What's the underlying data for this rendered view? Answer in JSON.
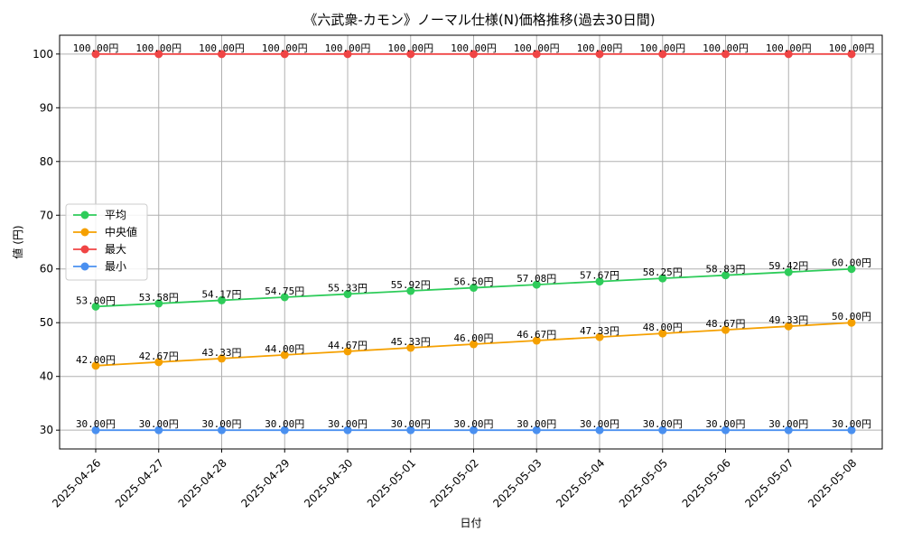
{
  "chart_data": {
    "type": "line",
    "title": "《六武衆-カモン》ノーマル仕様(N)価格推移(過去30日間)",
    "xlabel": "日付",
    "ylabel": "値 (円)",
    "x": [
      "2025-04-26",
      "2025-04-27",
      "2025-04-28",
      "2025-04-29",
      "2025-04-30",
      "2025-05-01",
      "2025-05-02",
      "2025-05-03",
      "2025-05-04",
      "2025-05-05",
      "2025-05-06",
      "2025-05-07",
      "2025-05-08"
    ],
    "ylim": [
      26.5,
      103.5
    ],
    "yticks": [
      30,
      40,
      50,
      60,
      70,
      80,
      90,
      100
    ],
    "grid": true,
    "legend_position": "center-left",
    "series": [
      {
        "name": "平均",
        "color": "#2ecc5a",
        "values": [
          53.0,
          53.58,
          54.17,
          54.75,
          55.33,
          55.92,
          56.5,
          57.08,
          57.67,
          58.25,
          58.83,
          59.42,
          60.0
        ],
        "labels": [
          "53.00円",
          "53.58円",
          "54.17円",
          "54.75円",
          "55.33円",
          "55.92円",
          "56.50円",
          "57.08円",
          "57.67円",
          "58.25円",
          "58.83円",
          "59.42円",
          "60.00円"
        ]
      },
      {
        "name": "中央値",
        "color": "#f5a000",
        "values": [
          42.0,
          42.67,
          43.33,
          44.0,
          44.67,
          45.33,
          46.0,
          46.67,
          47.33,
          48.0,
          48.67,
          49.33,
          50.0
        ],
        "labels": [
          "42.00円",
          "42.67円",
          "43.33円",
          "44.00円",
          "44.67円",
          "45.33円",
          "46.00円",
          "46.67円",
          "47.33円",
          "48.00円",
          "48.67円",
          "49.33円",
          "50.00円"
        ]
      },
      {
        "name": "最大",
        "color": "#f04545",
        "values": [
          100,
          100,
          100,
          100,
          100,
          100,
          100,
          100,
          100,
          100,
          100,
          100,
          100
        ],
        "labels": [
          "100.00円",
          "100.00円",
          "100.00円",
          "100.00円",
          "100.00円",
          "100.00円",
          "100.00円",
          "100.00円",
          "100.00円",
          "100.00円",
          "100.00円",
          "100.00円",
          "100.00円"
        ]
      },
      {
        "name": "最小",
        "color": "#4a90f0",
        "values": [
          30,
          30,
          30,
          30,
          30,
          30,
          30,
          30,
          30,
          30,
          30,
          30,
          30
        ],
        "labels": [
          "30.00円",
          "30.00円",
          "30.00円",
          "30.00円",
          "30.00円",
          "30.00円",
          "30.00円",
          "30.00円",
          "30.00円",
          "30.00円",
          "30.00円",
          "30.00円",
          "30.00円"
        ]
      }
    ]
  }
}
